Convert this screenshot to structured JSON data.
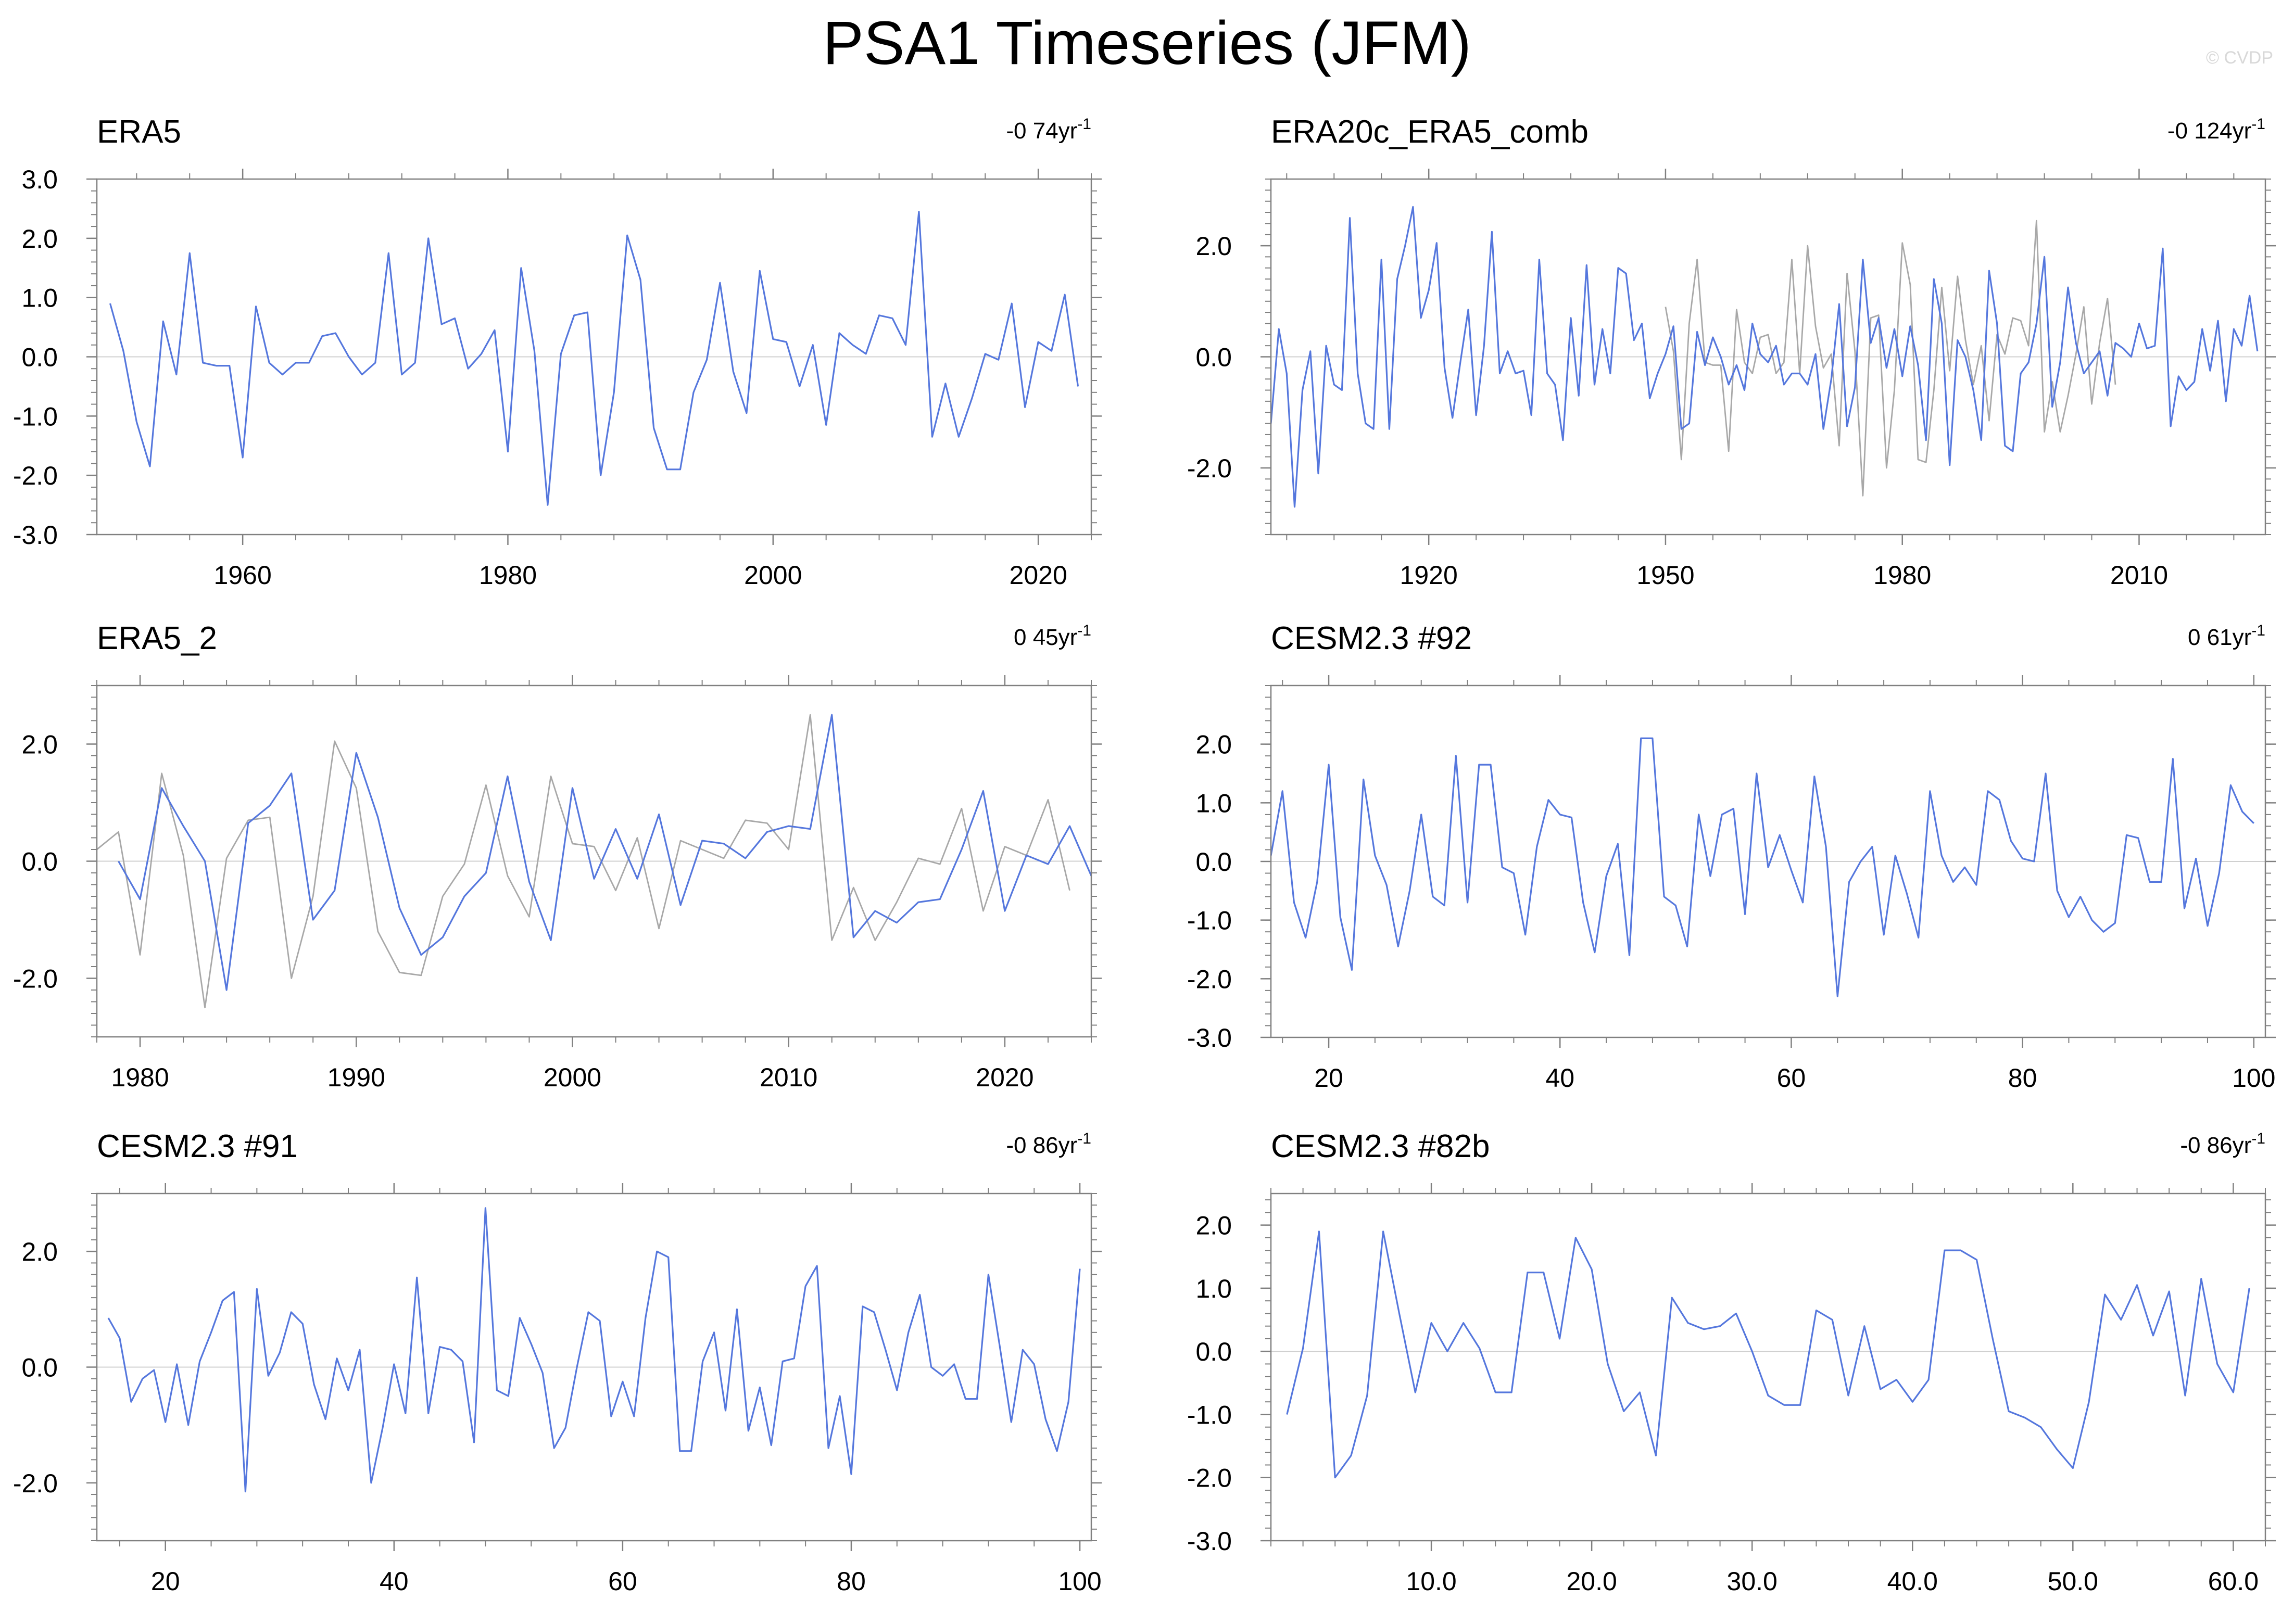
{
  "title": "PSA1 Timeseries (JFM)",
  "watermark": "© CVDP",
  "colors": {
    "primary": "#5577dd",
    "secondary": "#a8a8a8",
    "zero": "#d0d0d0",
    "axis": "#808080"
  },
  "chart_data": [
    {
      "type": "line",
      "title": "ERA5",
      "trend": {
        "value": "-0 74",
        "unit": "yr",
        "exp": "-1"
      },
      "xlim": [
        1949,
        2024
      ],
      "ylim": [
        -3,
        3
      ],
      "xticks": [
        1960,
        1980,
        2000,
        2020
      ],
      "xtick_labels": [
        "1960",
        "1980",
        "2000",
        "2020"
      ],
      "yticks": [
        -3,
        -2,
        -1,
        0,
        1,
        2,
        3
      ],
      "ytick_labels": [
        "-3.0",
        "-2.0",
        "-1.0",
        "0.0",
        "1.0",
        "2.0",
        "3.0"
      ],
      "series": [
        {
          "name": "ERA5",
          "style": "primary",
          "x_start": 1950,
          "x_step": 1,
          "values": [
            0.9,
            0.1,
            -1.1,
            -1.85,
            0.6,
            -0.3,
            1.75,
            -0.1,
            -0.15,
            -0.15,
            -1.7,
            0.85,
            -0.1,
            -0.3,
            -0.1,
            -0.1,
            0.35,
            0.4,
            0.0,
            -0.3,
            -0.1,
            1.75,
            -0.3,
            -0.1,
            2.0,
            0.55,
            0.65,
            -0.2,
            0.05,
            0.45,
            -1.6,
            1.5,
            0.1,
            -2.5,
            0.05,
            0.7,
            0.75,
            -2.0,
            -0.6,
            2.05,
            1.3,
            -1.2,
            -1.9,
            -1.9,
            -0.6,
            -0.05,
            1.25,
            -0.25,
            -0.95,
            1.45,
            0.3,
            0.25,
            -0.5,
            0.2,
            -1.15,
            0.4,
            0.2,
            0.05,
            0.7,
            0.65,
            0.2,
            2.45,
            -1.35,
            -0.45,
            -1.35,
            -0.7,
            0.05,
            -0.05,
            0.9,
            -0.85,
            0.25,
            0.1,
            1.05,
            -0.5
          ]
        }
      ]
    },
    {
      "type": "line",
      "title": "ERA20c_ERA5_comb",
      "trend": {
        "value": "-0 124",
        "unit": "yr",
        "exp": "-1"
      },
      "xlim": [
        1900,
        2026
      ],
      "ylim": [
        -3.2,
        3.2
      ],
      "xticks": [
        1920,
        1950,
        1980,
        2010
      ],
      "xtick_labels": [
        "1920",
        "1950",
        "1980",
        "2010"
      ],
      "yticks": [
        -2,
        0,
        2
      ],
      "ytick_labels": [
        "-2.0",
        "0.0",
        "2.0"
      ],
      "series": [
        {
          "name": "ERA5",
          "style": "secondary",
          "x_start": 1950,
          "x_step": 1,
          "values": [
            0.9,
            0.1,
            -1.85,
            0.6,
            1.75,
            -0.1,
            -0.15,
            -0.15,
            -1.7,
            0.85,
            -0.1,
            -0.3,
            0.35,
            0.4,
            -0.3,
            -0.1,
            1.75,
            -0.3,
            2.0,
            0.55,
            -0.2,
            0.05,
            -1.6,
            1.5,
            0.1,
            -2.5,
            0.7,
            0.75,
            -2.0,
            -0.6,
            2.05,
            1.3,
            -1.85,
            -1.9,
            -0.6,
            1.25,
            -0.25,
            1.45,
            0.3,
            -0.5,
            0.2,
            -1.15,
            0.4,
            0.05,
            0.7,
            0.65,
            0.2,
            2.45,
            -1.35,
            -0.45,
            -1.35,
            -0.7,
            0.05,
            0.9,
            -0.85,
            0.25,
            1.05,
            -0.5
          ]
        },
        {
          "name": "ERA20c_ERA5_comb",
          "style": "primary",
          "x_start": 1900,
          "x_step": 1,
          "values": [
            -1.2,
            0.5,
            -0.3,
            -2.7,
            -0.6,
            0.1,
            -2.1,
            0.2,
            -0.5,
            -0.6,
            2.5,
            -0.3,
            -1.2,
            -1.3,
            1.75,
            -1.3,
            1.4,
            2.0,
            2.7,
            0.7,
            1.2,
            2.05,
            -0.2,
            -1.1,
            -0.1,
            0.85,
            -1.05,
            0.2,
            2.25,
            -0.3,
            0.1,
            -0.3,
            -0.25,
            -1.05,
            1.75,
            -0.3,
            -0.5,
            -1.5,
            0.7,
            -0.7,
            1.65,
            -0.5,
            0.5,
            -0.3,
            1.6,
            1.5,
            0.3,
            0.6,
            -0.75,
            -0.3,
            0.05,
            0.55,
            -1.3,
            -1.2,
            0.45,
            -0.15,
            0.35,
            0.0,
            -0.5,
            -0.15,
            -0.6,
            0.6,
            0.05,
            -0.1,
            0.2,
            -0.5,
            -0.3,
            -0.3,
            -0.5,
            0.05,
            -1.3,
            -0.4,
            0.95,
            -1.25,
            -0.55,
            1.75,
            0.25,
            0.7,
            -0.2,
            0.5,
            -0.35,
            0.55,
            -0.15,
            -1.5,
            1.4,
            0.6,
            -1.95,
            0.3,
            0.0,
            -0.6,
            -1.5,
            1.55,
            0.6,
            -1.6,
            -1.7,
            -0.3,
            -0.1,
            0.6,
            1.8,
            -0.9,
            -0.1,
            1.25,
            0.25,
            -0.3,
            -0.1,
            0.1,
            -0.7,
            0.25,
            0.15,
            0.0,
            0.6,
            0.15,
            0.2,
            1.95,
            -1.25,
            -0.35,
            -0.6,
            -0.45,
            0.5,
            -0.25,
            0.65,
            -0.8,
            0.5,
            0.2,
            1.1,
            0.1
          ]
        }
      ]
    },
    {
      "type": "line",
      "title": "ERA5_2",
      "trend": {
        "value": "0 45",
        "unit": "yr",
        "exp": "-1"
      },
      "xlim": [
        1978,
        2024
      ],
      "ylim": [
        -3,
        3
      ],
      "xticks": [
        1980,
        1990,
        2000,
        2010,
        2020
      ],
      "xtick_labels": [
        "1980",
        "1990",
        "2000",
        "2010",
        "2020"
      ],
      "yticks": [
        -2,
        0,
        2
      ],
      "ytick_labels": [
        "-2.0",
        "0.0",
        "2.0"
      ],
      "series": [
        {
          "name": "ERA5",
          "style": "secondary",
          "x_start": 1978,
          "x_step": 1,
          "values": [
            0.2,
            0.5,
            -1.6,
            1.5,
            0.1,
            -2.5,
            0.05,
            0.7,
            0.75,
            -2.0,
            -0.6,
            2.05,
            1.25,
            -1.2,
            -1.9,
            -1.95,
            -0.6,
            -0.05,
            1.3,
            -0.25,
            -0.95,
            1.45,
            0.3,
            0.25,
            -0.5,
            0.4,
            -1.15,
            0.35,
            0.2,
            0.05,
            0.7,
            0.65,
            0.2,
            2.5,
            -1.35,
            -0.45,
            -1.35,
            -0.7,
            0.05,
            -0.05,
            0.9,
            -0.85,
            0.25,
            0.1,
            1.05,
            -0.5
          ]
        },
        {
          "name": "ERA5_2",
          "style": "primary",
          "x_start": 1979,
          "x_step": 1,
          "values": [
            0.0,
            -0.65,
            1.25,
            0.6,
            0.0,
            -2.2,
            0.65,
            0.95,
            1.5,
            -1.0,
            -0.5,
            1.85,
            0.75,
            -0.8,
            -1.6,
            -1.3,
            -0.6,
            -0.2,
            1.45,
            -0.35,
            -1.35,
            1.25,
            -0.3,
            0.55,
            -0.3,
            0.8,
            -0.75,
            0.35,
            0.3,
            0.05,
            0.5,
            0.6,
            0.55,
            2.5,
            -1.3,
            -0.85,
            -1.05,
            -0.7,
            -0.65,
            0.2,
            1.2,
            -0.85,
            0.1,
            -0.05,
            0.6,
            -0.25
          ]
        }
      ]
    },
    {
      "type": "line",
      "title": "CESM2.3 #92",
      "trend": {
        "value": "0 61",
        "unit": "yr",
        "exp": "-1"
      },
      "xlim": [
        15,
        101
      ],
      "ylim": [
        -3,
        3
      ],
      "xticks": [
        20,
        40,
        60,
        80,
        100
      ],
      "xtick_labels": [
        "20",
        "40",
        "60",
        "80",
        "100"
      ],
      "yticks": [
        -3,
        -2,
        -1,
        0,
        1,
        2
      ],
      "ytick_labels": [
        "-3.0",
        "-2.0",
        "-1.0",
        "0.0",
        "1.0",
        "2.0"
      ],
      "series": [
        {
          "name": "CESM2.3 #92",
          "style": "primary",
          "x_start": 15,
          "x_step": 1,
          "values": [
            0.1,
            1.2,
            -0.7,
            -1.3,
            -0.35,
            1.65,
            -0.95,
            -1.85,
            1.4,
            0.1,
            -0.4,
            -1.45,
            -0.5,
            0.8,
            -0.6,
            -0.75,
            1.8,
            -0.7,
            1.65,
            1.65,
            -0.1,
            -0.2,
            -1.25,
            0.25,
            1.05,
            0.8,
            0.75,
            -0.7,
            -1.55,
            -0.25,
            0.3,
            -1.6,
            2.1,
            2.1,
            -0.6,
            -0.75,
            -1.45,
            0.8,
            -0.25,
            0.8,
            0.9,
            -0.9,
            1.5,
            -0.1,
            0.45,
            -0.15,
            -0.7,
            1.45,
            0.25,
            -2.3,
            -0.35,
            0.0,
            0.25,
            -1.25,
            0.1,
            -0.55,
            -1.3,
            1.2,
            0.1,
            -0.35,
            -0.1,
            -0.4,
            1.2,
            1.05,
            0.35,
            0.05,
            0.0,
            1.5,
            -0.5,
            -0.95,
            -0.6,
            -1.0,
            -1.2,
            -1.05,
            0.45,
            0.4,
            -0.35,
            -0.35,
            1.75,
            -0.8,
            0.05,
            -1.1,
            -0.2,
            1.3,
            0.85,
            0.65
          ]
        }
      ]
    },
    {
      "type": "line",
      "title": "CESM2.3 #91",
      "trend": {
        "value": "-0 86",
        "unit": "yr",
        "exp": "-1"
      },
      "xlim": [
        14,
        101
      ],
      "ylim": [
        -3,
        3
      ],
      "xticks": [
        20,
        40,
        60,
        80,
        100
      ],
      "xtick_labels": [
        "20",
        "40",
        "60",
        "80",
        "100"
      ],
      "yticks": [
        -2,
        0,
        2
      ],
      "ytick_labels": [
        "-2.0",
        "0.0",
        "2.0"
      ],
      "series": [
        {
          "name": "CESM2.3 #91",
          "style": "primary",
          "x_start": 15,
          "x_step": 1,
          "values": [
            0.85,
            0.5,
            -0.6,
            -0.2,
            -0.05,
            -0.95,
            0.05,
            -1.0,
            0.1,
            0.6,
            1.15,
            1.3,
            -2.15,
            1.35,
            -0.15,
            0.25,
            0.95,
            0.75,
            -0.3,
            -0.9,
            0.15,
            -0.4,
            0.3,
            -2.0,
            -1.05,
            0.05,
            -0.8,
            1.55,
            -0.8,
            0.35,
            0.3,
            0.1,
            -1.3,
            2.75,
            -0.4,
            -0.5,
            0.85,
            0.4,
            -0.1,
            -1.4,
            -1.05,
            0.0,
            0.95,
            0.8,
            -0.85,
            -0.25,
            -0.85,
            0.85,
            2.0,
            1.9,
            -1.45,
            -1.45,
            0.1,
            0.6,
            -0.75,
            1.0,
            -1.1,
            -0.35,
            -1.35,
            0.1,
            0.15,
            1.4,
            1.75,
            -1.4,
            -0.5,
            -1.85,
            1.05,
            0.95,
            0.3,
            -0.4,
            0.6,
            1.25,
            0.0,
            -0.15,
            0.05,
            -0.55,
            -0.55,
            1.6,
            0.35,
            -0.95,
            0.3,
            0.05,
            -0.9,
            -1.45,
            -0.6,
            1.7
          ]
        }
      ]
    },
    {
      "type": "line",
      "title": "CESM2.3 #82b",
      "trend": {
        "value": "-0 86",
        "unit": "yr",
        "exp": "-1"
      },
      "xlim": [
        0,
        62
      ],
      "ylim": [
        -3,
        2.5
      ],
      "xticks": [
        10,
        20,
        30,
        40,
        50,
        60
      ],
      "xtick_labels": [
        "10.0",
        "20.0",
        "30.0",
        "40.0",
        "50.0",
        "60.0"
      ],
      "yticks": [
        -3,
        -2,
        -1,
        0,
        1,
        2
      ],
      "ytick_labels": [
        "-3.0",
        "-2.0",
        "-1.0",
        "0.0",
        "1.0",
        "2.0"
      ],
      "series": [
        {
          "name": "CESM2.3 #82b",
          "style": "primary",
          "x_start": 1,
          "x_step": 1,
          "values": [
            -1.0,
            0.05,
            1.9,
            -2.0,
            -1.65,
            -0.7,
            1.9,
            0.6,
            -0.65,
            0.45,
            0.0,
            0.45,
            0.05,
            -0.65,
            -0.65,
            1.25,
            1.25,
            0.2,
            1.8,
            1.3,
            -0.2,
            -0.95,
            -0.65,
            -1.65,
            0.85,
            0.45,
            0.35,
            0.4,
            0.6,
            0.0,
            -0.7,
            -0.85,
            -0.85,
            0.65,
            0.5,
            -0.7,
            0.4,
            -0.6,
            -0.45,
            -0.8,
            -0.45,
            1.6,
            1.6,
            1.45,
            0.2,
            -0.95,
            -1.05,
            -1.2,
            -1.55,
            -1.85,
            -0.8,
            0.9,
            0.5,
            1.05,
            0.25,
            0.95,
            -0.7,
            1.15,
            -0.2,
            -0.65,
            1.0
          ]
        }
      ]
    }
  ]
}
